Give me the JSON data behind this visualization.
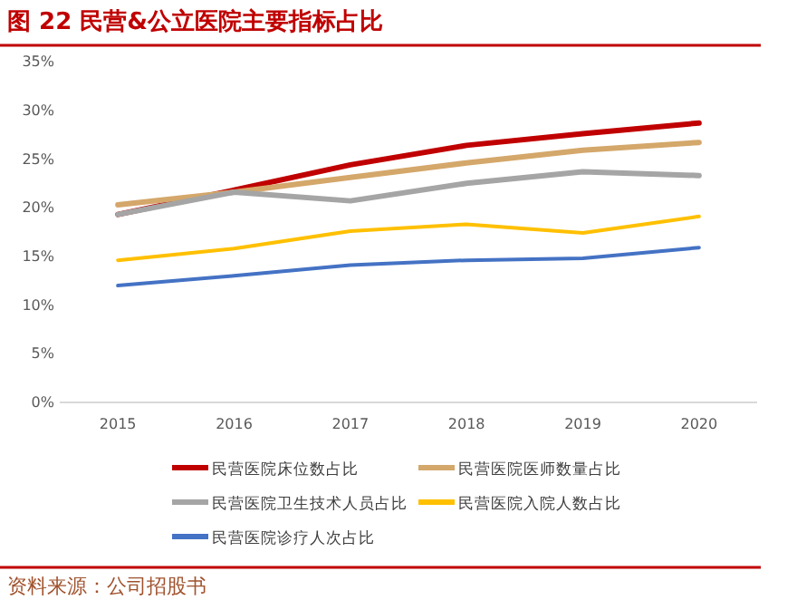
{
  "chart_data": {
    "type": "line",
    "title": "图 22 民营&公立医院主要指标占比",
    "categories": [
      "2015",
      "2016",
      "2017",
      "2018",
      "2019",
      "2020"
    ],
    "series": [
      {
        "name": "民营医院床位数占比",
        "color": "#c00000",
        "values": [
          19.3,
          21.8,
          24.4,
          26.4,
          27.6,
          28.7
        ]
      },
      {
        "name": "民营医院医师数量占比",
        "color": "#d4a76a",
        "values": [
          20.3,
          21.6,
          23.1,
          24.6,
          25.9,
          26.7
        ]
      },
      {
        "name": "民营医院卫生技术人员占比",
        "color": "#a5a5a5",
        "values": [
          19.3,
          21.6,
          20.7,
          22.5,
          23.7,
          23.3
        ]
      },
      {
        "name": "民营医院入院人数占比",
        "color": "#ffc000",
        "values": [
          14.6,
          15.8,
          17.6,
          18.3,
          17.4,
          19.1
        ]
      },
      {
        "name": "民营医院诊疗人次占比",
        "color": "#4472c4",
        "values": [
          12.0,
          13.0,
          14.1,
          14.6,
          14.8,
          15.9
        ]
      }
    ],
    "ylim": [
      0,
      35
    ],
    "yticks": [
      {
        "value": 0,
        "label": "0%"
      },
      {
        "value": 5,
        "label": "5%"
      },
      {
        "value": 10,
        "label": "10%"
      },
      {
        "value": 15,
        "label": "15%"
      },
      {
        "value": 20,
        "label": "20%"
      },
      {
        "value": 25,
        "label": "25%"
      },
      {
        "value": 30,
        "label": "30%"
      },
      {
        "value": 35,
        "label": "35%"
      }
    ],
    "legend": "bottom",
    "marker": "none",
    "line_style": "solid",
    "annotations": [
      "资料来源：公司招股书"
    ]
  }
}
